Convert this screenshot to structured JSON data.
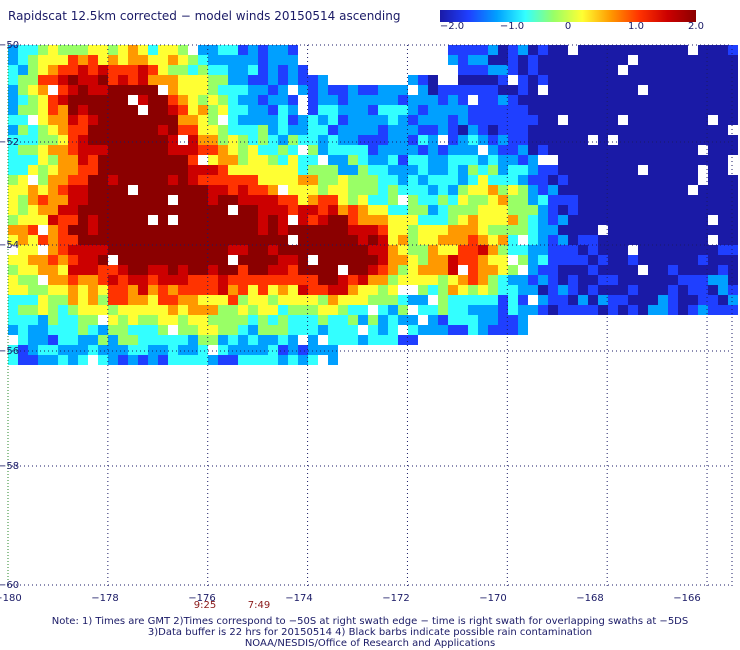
{
  "title": "Rapidscat 12.5km corrected − model winds 20150514 ascending",
  "colorbar": {
    "labels": [
      "−2.0",
      "−1.0",
      "0",
      "1.0",
      "2.0"
    ],
    "min": -2.0,
    "max": 2.0,
    "colors": [
      "#1a1aa6",
      "#1f3fff",
      "#00a0ff",
      "#33ffff",
      "#99ff66",
      "#ffff33",
      "#ff9900",
      "#ff3300",
      "#cc0000",
      "#8b0000"
    ]
  },
  "axes": {
    "lat_labels": [
      "−50",
      "−52",
      "−54",
      "−56",
      "−58",
      "−60"
    ],
    "lon_labels": [
      "−180",
      "−178",
      "−176",
      "−174",
      "−172",
      "−170",
      "−168",
      "−166"
    ],
    "lat_range": [
      -60,
      -50
    ],
    "lon_range": [
      -180,
      -165.5
    ]
  },
  "times": [
    "9:25",
    "7:49"
  ],
  "notes": [
    "Note: 1) Times are GMT 2)Times correspond to −50S at right swath edge − time is right swath for overlapping swaths at −5DS",
    "3)Data buffer is 22 hrs for 20150514 4) Black barbs indicate possible rain contamination",
    "NOAA/NESDIS/Office of Research and Applications"
  ]
}
